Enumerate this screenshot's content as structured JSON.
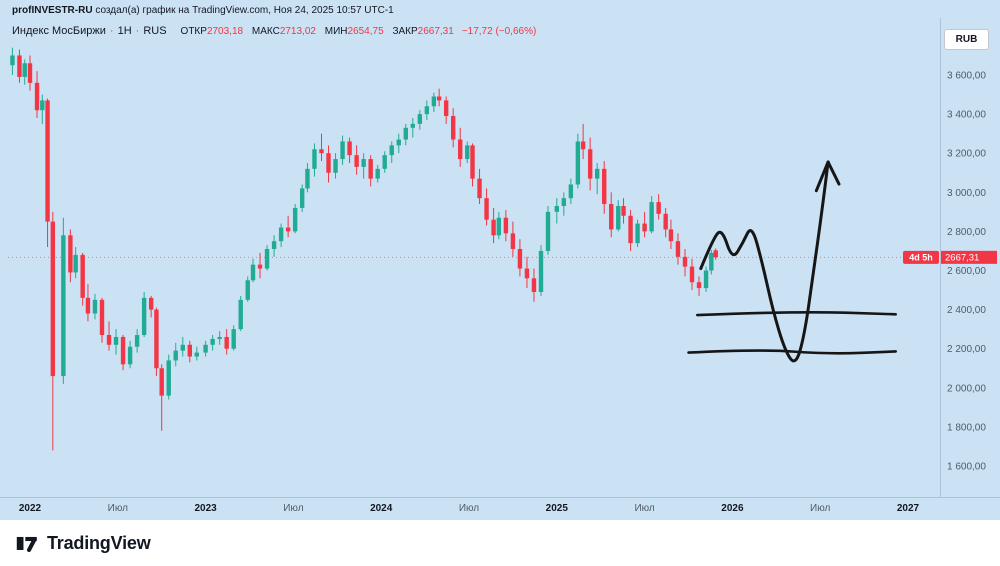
{
  "attribution": {
    "author": "profINVESTR-RU",
    "rest": " создал(а) график на TradingView.com, Ноя 24, 2025 10:57 UTC-1"
  },
  "legend": {
    "symbol": "Индекс МосБиржи",
    "dot": "·",
    "timeframe": "1Н",
    "market": "RUS",
    "ohlc": [
      {
        "label": "ОТКР",
        "value": "2703,18"
      },
      {
        "label": "МАКС",
        "value": "2713,02"
      },
      {
        "label": "МИН",
        "value": "2654,75"
      },
      {
        "label": "ЗАКР",
        "value": "2667,31"
      }
    ],
    "change": "−17,72 (−0,66%)"
  },
  "currency_button": {
    "label": "RUB"
  },
  "price_line": {
    "price": 2667.31,
    "label": "2667,31",
    "countdown": "4d 5h",
    "color": "#f23645"
  },
  "price_axis": {
    "labels": [
      {
        "v": 3600,
        "text": "3 600,00"
      },
      {
        "v": 3400,
        "text": "3 400,00"
      },
      {
        "v": 3200,
        "text": "3 200,00"
      },
      {
        "v": 3000,
        "text": "3 000,00"
      },
      {
        "v": 2800,
        "text": "2 800,00"
      },
      {
        "v": 2600,
        "text": "2 600,00"
      },
      {
        "v": 2400,
        "text": "2 400,00"
      },
      {
        "v": 2200,
        "text": "2 200,00"
      },
      {
        "v": 2000,
        "text": "2 000,00"
      },
      {
        "v": 1800,
        "text": "1 800,00"
      },
      {
        "v": 1600,
        "text": "1 600,00"
      }
    ]
  },
  "time_axis": {
    "labels": [
      {
        "t": 2022.0,
        "text": "2022",
        "year": true
      },
      {
        "t": 2022.5,
        "text": "Июл",
        "year": false
      },
      {
        "t": 2023.0,
        "text": "2023",
        "year": true
      },
      {
        "t": 2023.5,
        "text": "Июл",
        "year": false
      },
      {
        "t": 2024.0,
        "text": "2024",
        "year": true
      },
      {
        "t": 2024.5,
        "text": "Июл",
        "year": false
      },
      {
        "t": 2025.0,
        "text": "2025",
        "year": true
      },
      {
        "t": 2025.5,
        "text": "Июл",
        "year": false
      },
      {
        "t": 2026.0,
        "text": "2026",
        "year": true
      },
      {
        "t": 2026.5,
        "text": "Июл",
        "year": false
      },
      {
        "t": 2027.0,
        "text": "2027",
        "year": true
      }
    ]
  },
  "footer": {
    "brand": "TradingView"
  },
  "chart_data": {
    "type": "candlestick",
    "title": "Индекс МосБиржи · 1Н · RUS",
    "timeframe": "1Н",
    "currency": "RUB",
    "ylabel": "RUB",
    "ylim": [
      1550,
      3750
    ],
    "xlim_years": [
      2021.88,
      2027.15
    ],
    "grid": false,
    "up_color": "#22ab94",
    "down_color": "#f23645",
    "last_bar": {
      "open": 2703.18,
      "high": 2713.02,
      "low": 2654.75,
      "close": 2667.31,
      "change": -17.72,
      "change_pct": -0.66
    },
    "candles": [
      [
        2021.9,
        3650,
        3740,
        3600,
        3700
      ],
      [
        2021.94,
        3700,
        3730,
        3560,
        3590
      ],
      [
        2021.97,
        3590,
        3680,
        3550,
        3660
      ],
      [
        2022.0,
        3660,
        3700,
        3520,
        3560
      ],
      [
        2022.04,
        3560,
        3620,
        3380,
        3420
      ],
      [
        2022.07,
        3420,
        3500,
        3350,
        3470
      ],
      [
        2022.1,
        3470,
        3480,
        2720,
        2850
      ],
      [
        2022.13,
        2850,
        2900,
        1680,
        2060
      ],
      [
        2022.19,
        2060,
        2870,
        2020,
        2780
      ],
      [
        2022.23,
        2780,
        2810,
        2540,
        2590
      ],
      [
        2022.26,
        2590,
        2720,
        2560,
        2680
      ],
      [
        2022.3,
        2680,
        2690,
        2420,
        2460
      ],
      [
        2022.33,
        2460,
        2530,
        2340,
        2380
      ],
      [
        2022.37,
        2380,
        2480,
        2350,
        2450
      ],
      [
        2022.41,
        2450,
        2460,
        2230,
        2270
      ],
      [
        2022.45,
        2270,
        2340,
        2190,
        2220
      ],
      [
        2022.49,
        2220,
        2300,
        2170,
        2260
      ],
      [
        2022.53,
        2260,
        2270,
        2090,
        2120
      ],
      [
        2022.57,
        2120,
        2240,
        2100,
        2210
      ],
      [
        2022.61,
        2210,
        2300,
        2180,
        2270
      ],
      [
        2022.65,
        2270,
        2490,
        2260,
        2460
      ],
      [
        2022.69,
        2460,
        2470,
        2360,
        2400
      ],
      [
        2022.72,
        2400,
        2410,
        2060,
        2100
      ],
      [
        2022.75,
        2100,
        2120,
        1780,
        1960
      ],
      [
        2022.79,
        1960,
        2170,
        1940,
        2140
      ],
      [
        2022.83,
        2140,
        2230,
        2110,
        2190
      ],
      [
        2022.87,
        2190,
        2260,
        2160,
        2220
      ],
      [
        2022.91,
        2220,
        2240,
        2130,
        2160
      ],
      [
        2022.95,
        2160,
        2210,
        2140,
        2180
      ],
      [
        2023.0,
        2180,
        2240,
        2160,
        2220
      ],
      [
        2023.04,
        2220,
        2270,
        2190,
        2250
      ],
      [
        2023.08,
        2250,
        2290,
        2220,
        2260
      ],
      [
        2023.12,
        2260,
        2300,
        2170,
        2200
      ],
      [
        2023.16,
        2200,
        2320,
        2190,
        2300
      ],
      [
        2023.2,
        2300,
        2470,
        2290,
        2450
      ],
      [
        2023.24,
        2450,
        2570,
        2440,
        2550
      ],
      [
        2023.27,
        2550,
        2660,
        2540,
        2630
      ],
      [
        2023.31,
        2630,
        2690,
        2560,
        2610
      ],
      [
        2023.35,
        2610,
        2730,
        2600,
        2710
      ],
      [
        2023.39,
        2710,
        2780,
        2670,
        2750
      ],
      [
        2023.43,
        2750,
        2840,
        2720,
        2820
      ],
      [
        2023.47,
        2820,
        2880,
        2770,
        2800
      ],
      [
        2023.51,
        2800,
        2940,
        2790,
        2920
      ],
      [
        2023.55,
        2920,
        3040,
        2900,
        3020
      ],
      [
        2023.58,
        3020,
        3150,
        3000,
        3120
      ],
      [
        2023.62,
        3120,
        3250,
        3080,
        3220
      ],
      [
        2023.66,
        3220,
        3300,
        3160,
        3200
      ],
      [
        2023.7,
        3200,
        3240,
        3050,
        3100
      ],
      [
        2023.74,
        3100,
        3200,
        3070,
        3170
      ],
      [
        2023.78,
        3170,
        3290,
        3140,
        3260
      ],
      [
        2023.82,
        3260,
        3280,
        3150,
        3190
      ],
      [
        2023.86,
        3190,
        3240,
        3090,
        3130
      ],
      [
        2023.9,
        3130,
        3200,
        3070,
        3170
      ],
      [
        2023.94,
        3170,
        3190,
        3030,
        3070
      ],
      [
        2023.98,
        3070,
        3140,
        3050,
        3120
      ],
      [
        2024.02,
        3120,
        3210,
        3100,
        3190
      ],
      [
        2024.06,
        3190,
        3260,
        3150,
        3240
      ],
      [
        2024.1,
        3240,
        3300,
        3200,
        3270
      ],
      [
        2024.14,
        3270,
        3350,
        3240,
        3330
      ],
      [
        2024.18,
        3330,
        3380,
        3280,
        3350
      ],
      [
        2024.22,
        3350,
        3420,
        3320,
        3400
      ],
      [
        2024.26,
        3400,
        3470,
        3370,
        3440
      ],
      [
        2024.3,
        3440,
        3510,
        3410,
        3490
      ],
      [
        2024.33,
        3490,
        3530,
        3440,
        3470
      ],
      [
        2024.37,
        3470,
        3490,
        3350,
        3390
      ],
      [
        2024.41,
        3390,
        3430,
        3230,
        3270
      ],
      [
        2024.45,
        3270,
        3330,
        3130,
        3170
      ],
      [
        2024.49,
        3170,
        3260,
        3150,
        3240
      ],
      [
        2024.52,
        3240,
        3250,
        3030,
        3070
      ],
      [
        2024.56,
        3070,
        3120,
        2940,
        2970
      ],
      [
        2024.6,
        2970,
        3020,
        2830,
        2860
      ],
      [
        2024.64,
        2860,
        2920,
        2740,
        2780
      ],
      [
        2024.67,
        2780,
        2900,
        2760,
        2870
      ],
      [
        2024.71,
        2870,
        2910,
        2750,
        2790
      ],
      [
        2024.75,
        2790,
        2850,
        2670,
        2710
      ],
      [
        2024.79,
        2710,
        2760,
        2570,
        2610
      ],
      [
        2024.83,
        2610,
        2670,
        2510,
        2560
      ],
      [
        2024.87,
        2560,
        2610,
        2440,
        2490
      ],
      [
        2024.91,
        2490,
        2730,
        2470,
        2700
      ],
      [
        2024.95,
        2700,
        2930,
        2680,
        2900
      ],
      [
        2025.0,
        2900,
        2970,
        2840,
        2930
      ],
      [
        2025.04,
        2930,
        3000,
        2880,
        2970
      ],
      [
        2025.08,
        2970,
        3070,
        2940,
        3040
      ],
      [
        2025.12,
        3040,
        3300,
        3020,
        3260
      ],
      [
        2025.15,
        3260,
        3350,
        3170,
        3220
      ],
      [
        2025.19,
        3220,
        3280,
        3010,
        3070
      ],
      [
        2025.23,
        3070,
        3150,
        2990,
        3120
      ],
      [
        2025.27,
        3120,
        3160,
        2890,
        2940
      ],
      [
        2025.31,
        2940,
        3000,
        2770,
        2810
      ],
      [
        2025.35,
        2810,
        2960,
        2800,
        2930
      ],
      [
        2025.38,
        2930,
        2970,
        2840,
        2880
      ],
      [
        2025.42,
        2880,
        2910,
        2700,
        2740
      ],
      [
        2025.46,
        2740,
        2860,
        2720,
        2840
      ],
      [
        2025.5,
        2840,
        2900,
        2770,
        2800
      ],
      [
        2025.54,
        2800,
        2980,
        2790,
        2950
      ],
      [
        2025.58,
        2950,
        2990,
        2860,
        2890
      ],
      [
        2025.62,
        2890,
        2920,
        2770,
        2810
      ],
      [
        2025.65,
        2810,
        2860,
        2710,
        2750
      ],
      [
        2025.69,
        2750,
        2790,
        2630,
        2670
      ],
      [
        2025.73,
        2670,
        2710,
        2570,
        2620
      ],
      [
        2025.77,
        2620,
        2660,
        2500,
        2540
      ],
      [
        2025.81,
        2540,
        2570,
        2470,
        2510
      ],
      [
        2025.85,
        2510,
        2620,
        2490,
        2600
      ],
      [
        2025.88,
        2600,
        2705,
        2580,
        2690
      ],
      [
        2025.905,
        2703.18,
        2713.02,
        2654.75,
        2667.31
      ]
    ],
    "annotation": {
      "color": "#161616",
      "support_levels": [
        2400,
        2200
      ],
      "support_lines": [
        [
          [
            2025.8,
            2372
          ],
          [
            2026.36,
            2392
          ],
          [
            2026.93,
            2376
          ]
        ],
        [
          [
            2025.75,
            2180
          ],
          [
            2026.15,
            2198
          ],
          [
            2026.55,
            2172
          ],
          [
            2026.93,
            2186
          ]
        ]
      ],
      "arrow_path": [
        [
          2025.82,
          2610
        ],
        [
          2025.89,
          2762
        ],
        [
          2025.94,
          2816
        ],
        [
          2026.0,
          2652
        ],
        [
          2026.06,
          2742
        ],
        [
          2026.11,
          2836
        ],
        [
          2026.17,
          2640
        ],
        [
          2026.23,
          2398
        ],
        [
          2026.3,
          2188
        ],
        [
          2026.36,
          2112
        ],
        [
          2026.41,
          2268
        ],
        [
          2026.46,
          2580
        ],
        [
          2026.51,
          2905
        ],
        [
          2026.545,
          3155
        ]
      ],
      "arrow_barbs": [
        [
          2026.478,
          3008
        ],
        [
          2026.607,
          3042
        ]
      ]
    }
  }
}
